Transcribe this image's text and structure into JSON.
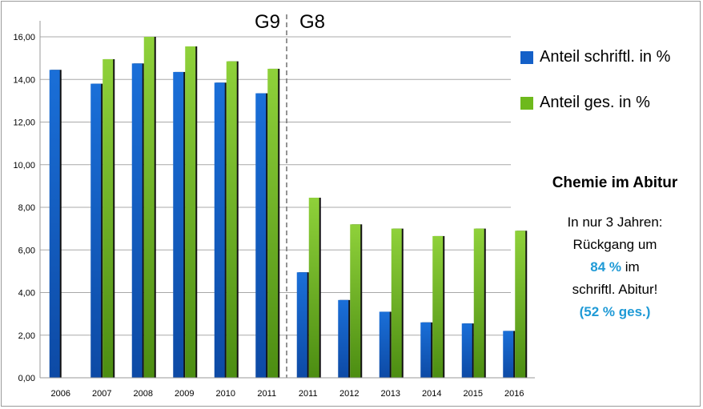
{
  "chart_data": {
    "type": "bar",
    "categories": [
      "2006",
      "2007",
      "2008",
      "2009",
      "2010",
      "2011",
      "2011",
      "2012",
      "2013",
      "2014",
      "2015",
      "2016"
    ],
    "series": [
      {
        "name": "Anteil schriftl. in %",
        "values": [
          14.45,
          13.8,
          14.75,
          14.35,
          13.85,
          13.35,
          4.95,
          3.65,
          3.1,
          2.6,
          2.55,
          2.2
        ],
        "color": "#1460c8"
      },
      {
        "name": "Anteil ges. in %",
        "values": [
          null,
          14.95,
          16.0,
          15.55,
          14.85,
          14.5,
          8.45,
          7.2,
          7.0,
          6.65,
          7.0,
          6.9
        ],
        "color": "#6eb91c"
      }
    ],
    "ylim": [
      0,
      16
    ],
    "yticks": [
      "0,00",
      "2,00",
      "4,00",
      "6,00",
      "8,00",
      "10,00",
      "12,00",
      "14,00",
      "16,00"
    ],
    "grid": true,
    "legend_position": "right",
    "divider_labels": {
      "left": "G9",
      "right": "G8"
    },
    "annotation": {
      "heading": "Chemie im Abitur",
      "line1": "In nur 3 Jahren:",
      "line2": "Rückgang um",
      "highlight1": "84 %",
      "line3_suffix": " im",
      "line4": "schriftl. Abitur!",
      "highlight2": "(52 % ges.)"
    }
  }
}
